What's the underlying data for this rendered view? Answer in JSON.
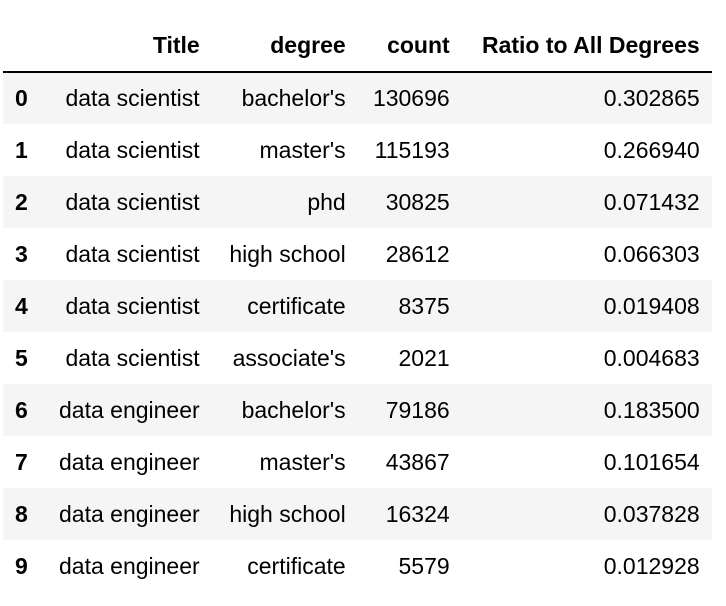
{
  "table": {
    "columns": [
      "",
      "Title",
      "degree",
      "count",
      "Ratio to All Degrees"
    ],
    "rows": [
      {
        "index": "0",
        "title": "data scientist",
        "degree": "bachelor's",
        "count": "130696",
        "ratio": "0.302865"
      },
      {
        "index": "1",
        "title": "data scientist",
        "degree": "master's",
        "count": "115193",
        "ratio": "0.266940"
      },
      {
        "index": "2",
        "title": "data scientist",
        "degree": "phd",
        "count": "30825",
        "ratio": "0.071432"
      },
      {
        "index": "3",
        "title": "data scientist",
        "degree": "high school",
        "count": "28612",
        "ratio": "0.066303"
      },
      {
        "index": "4",
        "title": "data scientist",
        "degree": "certificate",
        "count": "8375",
        "ratio": "0.019408"
      },
      {
        "index": "5",
        "title": "data scientist",
        "degree": "associate's",
        "count": "2021",
        "ratio": "0.004683"
      },
      {
        "index": "6",
        "title": "data engineer",
        "degree": "bachelor's",
        "count": "79186",
        "ratio": "0.183500"
      },
      {
        "index": "7",
        "title": "data engineer",
        "degree": "master's",
        "count": "43867",
        "ratio": "0.101654"
      },
      {
        "index": "8",
        "title": "data engineer",
        "degree": "high school",
        "count": "16324",
        "ratio": "0.037828"
      },
      {
        "index": "9",
        "title": "data engineer",
        "degree": "certificate",
        "count": "5579",
        "ratio": "0.012928"
      }
    ]
  },
  "colors": {
    "stripe": "#f5f5f5",
    "background": "#ffffff",
    "text": "#000000",
    "header_rule": "#000000"
  }
}
